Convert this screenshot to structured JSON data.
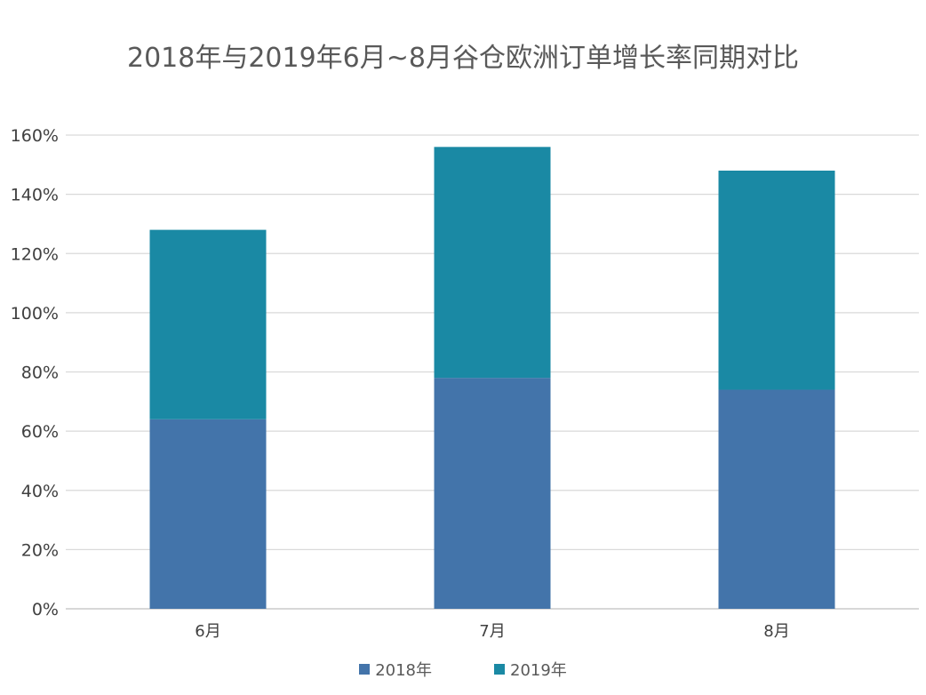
{
  "chart_data": {
    "type": "bar",
    "stacked": true,
    "title": "2018年与2019年6月~8月谷仓欧洲订单增长率同期对比",
    "xlabel": "",
    "ylabel": "",
    "categories": [
      "6月",
      "7月",
      "8月"
    ],
    "series": [
      {
        "name": "2018年",
        "values": [
          64,
          78,
          74
        ],
        "color": "#4374AA"
      },
      {
        "name": "2019年",
        "values": [
          64,
          78,
          74
        ],
        "color": "#1A89A4"
      }
    ],
    "ylim": [
      0,
      160
    ],
    "y_ticks": [
      "0%",
      "20%",
      "40%",
      "60%",
      "80%",
      "100%",
      "120%",
      "140%",
      "160%"
    ],
    "grid": true,
    "legend_position": "bottom"
  }
}
